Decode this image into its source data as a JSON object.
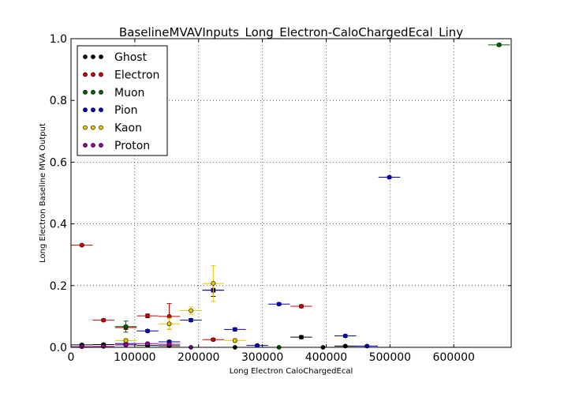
{
  "chart_data": {
    "type": "scatter",
    "title": "BaselineMVAVInputs_Long_Electron-CaloChargedEcal_Liny",
    "xlabel": "Long Electron CaloChargedEcal",
    "ylabel": "Long Electron Baseline MVA Output",
    "xlim": [
      0,
      690000
    ],
    "ylim": [
      0,
      1.0
    ],
    "xticks": [
      0,
      100000,
      200000,
      300000,
      400000,
      500000,
      600000
    ],
    "xtick_labels": [
      "0",
      "100000",
      "200000",
      "300000",
      "400000",
      "500000",
      "600000"
    ],
    "yticks": [
      0.0,
      0.2,
      0.4,
      0.6,
      0.8,
      1.0
    ],
    "ytick_labels": [
      "0.0",
      "0.2",
      "0.4",
      "0.6",
      "0.8",
      "1.0"
    ],
    "grid": true,
    "legend_position": "top-left",
    "series": [
      {
        "name": "Ghost",
        "color": "#000000",
        "points": [
          {
            "x": 17000,
            "y": 0.008,
            "xerr": 17000,
            "yerr": 0.003
          },
          {
            "x": 51000,
            "y": 0.009,
            "xerr": 17000,
            "yerr": 0.003
          },
          {
            "x": 86000,
            "y": 0.008,
            "xerr": 17000,
            "yerr": 0.003
          },
          {
            "x": 120000,
            "y": 0.006,
            "xerr": 17000,
            "yerr": 0.003
          },
          {
            "x": 154000,
            "y": 0.005,
            "xerr": 17000,
            "yerr": 0.003
          },
          {
            "x": 223000,
            "y": 0.185,
            "xerr": 17000,
            "yerr": 0.02
          },
          {
            "x": 257000,
            "y": 0.0,
            "xerr": 17000,
            "yerr": 0.0
          },
          {
            "x": 361000,
            "y": 0.033,
            "xerr": 17000,
            "yerr": 0.005
          },
          {
            "x": 395000,
            "y": 0.0,
            "xerr": 17000,
            "yerr": 0.0
          },
          {
            "x": 430000,
            "y": 0.004,
            "xerr": 17000,
            "yerr": 0.002
          }
        ]
      },
      {
        "name": "Electron",
        "color": "#cc0000",
        "points": [
          {
            "x": 17000,
            "y": 0.331,
            "xerr": 17000,
            "yerr": 0.003
          },
          {
            "x": 51000,
            "y": 0.088,
            "xerr": 17000,
            "yerr": 0.004
          },
          {
            "x": 86000,
            "y": 0.064,
            "xerr": 17000,
            "yerr": 0.006
          },
          {
            "x": 120000,
            "y": 0.102,
            "xerr": 17000,
            "yerr": 0.006
          },
          {
            "x": 154000,
            "y": 0.1,
            "xerr": 17000,
            "yerr": 0.042
          },
          {
            "x": 223000,
            "y": 0.025,
            "xerr": 17000,
            "yerr": 0.004
          },
          {
            "x": 361000,
            "y": 0.133,
            "xerr": 17000,
            "yerr": 0.005
          }
        ]
      },
      {
        "name": "Muon",
        "color": "#006600",
        "points": [
          {
            "x": 86000,
            "y": 0.067,
            "xerr": 17000,
            "yerr": 0.018
          },
          {
            "x": 326000,
            "y": 0.0,
            "xerr": 17000,
            "yerr": 0.0
          },
          {
            "x": 671000,
            "y": 0.98,
            "xerr": 17000,
            "yerr": 0.004
          }
        ]
      },
      {
        "name": "Pion",
        "color": "#0000cc",
        "points": [
          {
            "x": 86000,
            "y": 0.012,
            "xerr": 17000,
            "yerr": 0.003
          },
          {
            "x": 120000,
            "y": 0.053,
            "xerr": 17000,
            "yerr": 0.004
          },
          {
            "x": 154000,
            "y": 0.018,
            "xerr": 17000,
            "yerr": 0.004
          },
          {
            "x": 188000,
            "y": 0.088,
            "xerr": 17000,
            "yerr": 0.005
          },
          {
            "x": 223000,
            "y": 0.185,
            "xerr": 17000,
            "yerr": 0.006
          },
          {
            "x": 257000,
            "y": 0.058,
            "xerr": 17000,
            "yerr": 0.005
          },
          {
            "x": 292000,
            "y": 0.006,
            "xerr": 17000,
            "yerr": 0.003
          },
          {
            "x": 326000,
            "y": 0.14,
            "xerr": 17000,
            "yerr": 0.004
          },
          {
            "x": 430000,
            "y": 0.037,
            "xerr": 17000,
            "yerr": 0.004
          },
          {
            "x": 464000,
            "y": 0.004,
            "xerr": 17000,
            "yerr": 0.002
          },
          {
            "x": 499000,
            "y": 0.551,
            "xerr": 17000,
            "yerr": 0.004
          }
        ]
      },
      {
        "name": "Kaon",
        "color": "#e6c700",
        "points": [
          {
            "x": 86000,
            "y": 0.022,
            "xerr": 17000,
            "yerr": 0.006
          },
          {
            "x": 154000,
            "y": 0.076,
            "xerr": 17000,
            "yerr": 0.018
          },
          {
            "x": 188000,
            "y": 0.119,
            "xerr": 17000,
            "yerr": 0.012
          },
          {
            "x": 223000,
            "y": 0.207,
            "xerr": 17000,
            "yerr": 0.058
          },
          {
            "x": 257000,
            "y": 0.022,
            "xerr": 17000,
            "yerr": 0.006
          }
        ]
      },
      {
        "name": "Proton",
        "color": "#990099",
        "points": [
          {
            "x": 17000,
            "y": 0.002,
            "xerr": 17000,
            "yerr": 0.002
          },
          {
            "x": 51000,
            "y": 0.003,
            "xerr": 17000,
            "yerr": 0.002
          },
          {
            "x": 86000,
            "y": 0.008,
            "xerr": 17000,
            "yerr": 0.002
          },
          {
            "x": 120000,
            "y": 0.012,
            "xerr": 17000,
            "yerr": 0.003
          },
          {
            "x": 154000,
            "y": 0.01,
            "xerr": 17000,
            "yerr": 0.003
          },
          {
            "x": 188000,
            "y": 0.0,
            "xerr": 17000,
            "yerr": 0.0
          }
        ]
      }
    ]
  }
}
